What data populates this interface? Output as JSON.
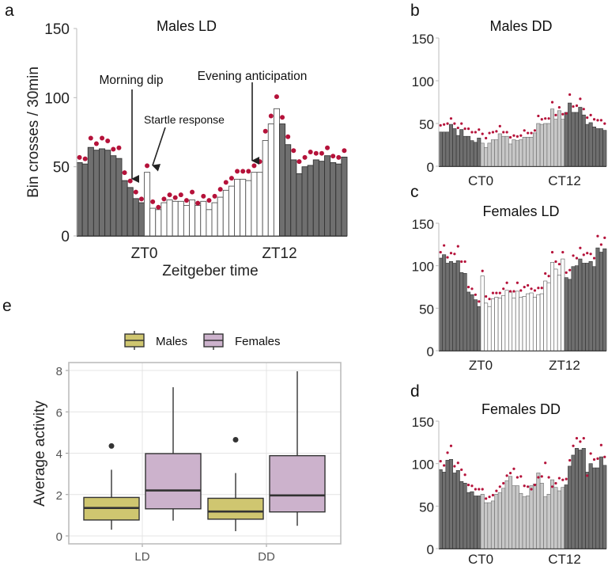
{
  "colors": {
    "dark_bar": "#6f6f6f",
    "dark_bar_stroke": "#333333",
    "light_bar": "#c8c8c8",
    "white_bar": "#ffffff",
    "white_bar_stroke": "#555555",
    "dot": "#b5123a",
    "males_fill": "#cfc670",
    "females_fill": "#ccb2cc",
    "box_stroke": "#333333",
    "grid": "#e4e4e4",
    "frame": "#bdbdbd"
  },
  "chart_data": [
    {
      "id": "a",
      "type": "bar",
      "panel_letter": "a",
      "title": "Males LD",
      "xlabel": "Zeitgeber time",
      "ylabel": "Bin crosses / 30min",
      "ylim": [
        0,
        150
      ],
      "yticks": [
        "0",
        "50",
        "100",
        "150"
      ],
      "xtick_labels": [
        {
          "label": "ZT0",
          "bin": 12
        },
        {
          "label": "ZT12",
          "bin": 36
        }
      ],
      "phase_pattern": {
        "dark_bins_start": 12,
        "light_bins": 24,
        "dark_bins_end": 12,
        "light_style": "white"
      },
      "series": [
        {
          "name": "bars",
          "values": [
            53,
            52,
            64,
            62,
            63,
            62,
            58,
            56,
            40,
            35,
            27,
            24,
            46,
            20,
            19,
            24,
            26,
            25,
            25,
            22,
            26,
            22,
            25,
            19,
            24,
            28,
            33,
            36,
            41,
            41,
            40,
            46,
            46,
            69,
            81,
            92,
            81,
            66,
            55,
            45,
            50,
            51,
            55,
            54,
            58,
            53,
            52,
            57
          ]
        },
        {
          "name": "dots",
          "values": [
            55,
            54,
            69,
            65,
            69,
            67,
            61,
            62,
            44,
            38,
            30,
            25,
            49,
            23,
            19,
            25,
            28,
            26,
            28,
            24,
            30,
            22,
            27,
            24,
            27,
            32,
            37,
            40,
            45,
            45,
            45,
            49,
            52,
            74,
            85,
            99,
            84,
            70,
            60,
            52,
            55,
            59,
            58,
            58,
            62,
            56,
            55,
            60
          ]
        }
      ],
      "annotations": [
        {
          "text": "Morning dip",
          "points_to_bin": 10
        },
        {
          "text": "Startle response",
          "points_to_bin": 12
        },
        {
          "text": "Evening anticipation",
          "points_to_bin": 31
        }
      ]
    },
    {
      "id": "b",
      "type": "bar",
      "panel_letter": "b",
      "title": "Males DD",
      "ylim": [
        0,
        150
      ],
      "yticks": [
        "0",
        "50",
        "100",
        "150"
      ],
      "xtick_labels": [
        {
          "label": "CT0",
          "bin": 12
        },
        {
          "label": "CT12",
          "bin": 36
        }
      ],
      "phase_pattern": {
        "dark_bins_start": 12,
        "light_bins": 24,
        "dark_bins_end": 12,
        "light_style": "light-grey"
      },
      "series": [
        {
          "name": "bars",
          "values": [
            40,
            40,
            40,
            49,
            44,
            36,
            43,
            35,
            35,
            30,
            28,
            33,
            27,
            22,
            27,
            31,
            31,
            38,
            35,
            35,
            26,
            31,
            30,
            31,
            34,
            34,
            34,
            39,
            50,
            49,
            50,
            50,
            67,
            55,
            65,
            55,
            63,
            74,
            63,
            63,
            69,
            60,
            49,
            51,
            46,
            44,
            44,
            42
          ]
        },
        {
          "name": "dots",
          "values": [
            46,
            47,
            48,
            54,
            48,
            43,
            48,
            42,
            42,
            38,
            38,
            41,
            36,
            31,
            37,
            38,
            39,
            45,
            38,
            38,
            32,
            34,
            33,
            34,
            40,
            37,
            37,
            40,
            57,
            53,
            54,
            54,
            73,
            58,
            67,
            59,
            60,
            82,
            68,
            69,
            77,
            65,
            55,
            58,
            53,
            52,
            52,
            48
          ]
        }
      ]
    },
    {
      "id": "c",
      "type": "bar",
      "panel_letter": "c",
      "title": "Females LD",
      "ylim": [
        0,
        150
      ],
      "yticks": [
        "0",
        "50",
        "100",
        "150"
      ],
      "xtick_labels": [
        {
          "label": "ZT0",
          "bin": 12
        },
        {
          "label": "ZT12",
          "bin": 36
        }
      ],
      "phase_pattern": {
        "dark_bins_start": 12,
        "light_bins": 24,
        "dark_bins_end": 12,
        "light_style": "white"
      },
      "series": [
        {
          "name": "bars",
          "values": [
            109,
            113,
            103,
            105,
            103,
            106,
            92,
            91,
            69,
            66,
            60,
            52,
            88,
            56,
            52,
            61,
            63,
            62,
            65,
            71,
            69,
            62,
            70,
            63,
            64,
            67,
            68,
            63,
            66,
            67,
            82,
            80,
            104,
            96,
            89,
            108,
            86,
            84,
            99,
            100,
            108,
            103,
            103,
            105,
            99,
            121,
            116,
            120
          ]
        },
        {
          "name": "dots",
          "values": [
            114,
            122,
            108,
            113,
            112,
            121,
            103,
            103,
            73,
            71,
            64,
            56,
            92,
            62,
            59,
            66,
            66,
            66,
            71,
            78,
            68,
            68,
            78,
            69,
            73,
            75,
            71,
            69,
            72,
            72,
            89,
            86,
            114,
            103,
            100,
            114,
            90,
            93,
            110,
            107,
            119,
            111,
            113,
            112,
            107,
            133,
            123,
            131
          ]
        }
      ]
    },
    {
      "id": "d",
      "type": "bar",
      "panel_letter": "d",
      "title": "Females DD",
      "ylim": [
        0,
        150
      ],
      "yticks": [
        "0",
        "50",
        "100",
        "150"
      ],
      "xtick_labels": [
        {
          "label": "CT0",
          "bin": 12
        },
        {
          "label": "CT12",
          "bin": 36
        }
      ],
      "phase_pattern": {
        "dark_bins_start": 12,
        "light_bins": 24,
        "dark_bins_end": 12,
        "light_style": "light-grey"
      },
      "series": [
        {
          "name": "bars",
          "values": [
            93,
            90,
            104,
            105,
            89,
            92,
            79,
            77,
            66,
            67,
            62,
            62,
            64,
            54,
            54,
            56,
            64,
            66,
            71,
            80,
            85,
            74,
            74,
            65,
            61,
            62,
            74,
            76,
            89,
            77,
            61,
            64,
            81,
            72,
            68,
            72,
            75,
            97,
            110,
            118,
            116,
            118,
            90,
            100,
            95,
            95,
            108,
            98
          ]
        },
        {
          "name": "dots",
          "values": [
            101,
            96,
            111,
            119,
            95,
            99,
            91,
            85,
            73,
            72,
            68,
            68,
            68,
            57,
            59,
            61,
            66,
            71,
            75,
            84,
            87,
            92,
            82,
            83,
            72,
            71,
            68,
            73,
            82,
            83,
            99,
            82,
            71,
            75,
            81,
            79,
            80,
            102,
            119,
            128,
            124,
            128,
            84,
            110,
            103,
            104,
            120,
            106
          ]
        }
      ]
    },
    {
      "id": "e",
      "type": "box",
      "panel_letter": "e",
      "ylabel": "Average activity",
      "ylim": [
        0,
        8
      ],
      "yticks": [
        "0",
        "2",
        "4",
        "6",
        "8"
      ],
      "categories": [
        "LD",
        "DD"
      ],
      "grid": true,
      "legend": {
        "placement": "top",
        "entries": [
          "Males",
          "Females"
        ]
      },
      "series": [
        {
          "name": "Males",
          "boxes": [
            {
              "category": "LD",
              "whisker_low": 0.3,
              "q1": 0.77,
              "median": 1.35,
              "q3": 1.86,
              "whisker_high": 3.2,
              "outliers": [
                4.35
              ]
            },
            {
              "category": "DD",
              "whisker_low": 0.23,
              "q1": 0.81,
              "median": 1.18,
              "q3": 1.82,
              "whisker_high": 3.04,
              "outliers": [
                4.65
              ]
            }
          ]
        },
        {
          "name": "Females",
          "boxes": [
            {
              "category": "LD",
              "whisker_low": 0.74,
              "q1": 1.31,
              "median": 2.2,
              "q3": 3.98,
              "whisker_high": 7.19,
              "outliers": []
            },
            {
              "category": "DD",
              "whisker_low": 0.49,
              "q1": 1.16,
              "median": 1.96,
              "q3": 3.88,
              "whisker_high": 7.96,
              "outliers": []
            }
          ]
        }
      ]
    }
  ]
}
